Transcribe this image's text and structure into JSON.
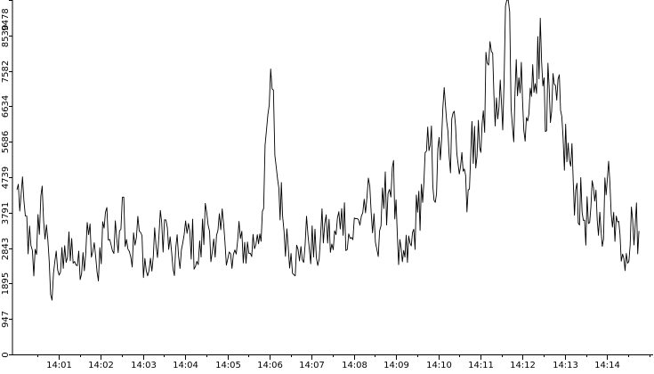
{
  "chart_data": {
    "type": "line",
    "title": "",
    "xlabel": "",
    "ylabel": "",
    "ylim": [
      0,
      9478
    ],
    "y_ticks": [
      0,
      947,
      1895,
      2843,
      3791,
      4739,
      5686,
      6634,
      7582,
      8530,
      9478
    ],
    "x_tick_labels": [
      "14:01",
      "14:02",
      "14:03",
      "14:04",
      "14:05",
      "14:06",
      "14:07",
      "14:08",
      "14:09",
      "14:10",
      "14:11",
      "14:12",
      "14:13",
      "14:14"
    ],
    "x_range_minutes": [
      0.2,
      15.0
    ],
    "grid": false,
    "legend": "none",
    "line_color": "#000000",
    "series": [
      {
        "points": [
          [
            0.2,
            4400
          ],
          [
            0.4,
            3700
          ],
          [
            0.6,
            2100
          ],
          [
            0.8,
            4500
          ],
          [
            1.0,
            1600
          ],
          [
            1.1,
            2500
          ],
          [
            1.3,
            2300
          ],
          [
            1.5,
            3100
          ],
          [
            1.7,
            2000
          ],
          [
            1.9,
            3200
          ],
          [
            2.1,
            2200
          ],
          [
            2.3,
            3800
          ],
          [
            2.5,
            2700
          ],
          [
            2.7,
            4200
          ],
          [
            2.9,
            2600
          ],
          [
            3.1,
            3300
          ],
          [
            3.3,
            2100
          ],
          [
            3.5,
            2900
          ],
          [
            3.7,
            3600
          ],
          [
            3.9,
            2300
          ],
          [
            4.1,
            2800
          ],
          [
            4.3,
            3300
          ],
          [
            4.5,
            2400
          ],
          [
            4.7,
            3800
          ],
          [
            4.9,
            2600
          ],
          [
            5.1,
            3500
          ],
          [
            5.3,
            2300
          ],
          [
            5.5,
            3100
          ],
          [
            5.7,
            2700
          ],
          [
            5.9,
            3200
          ],
          [
            6.05,
            3900
          ],
          [
            6.15,
            6400
          ],
          [
            6.25,
            7100
          ],
          [
            6.35,
            5000
          ],
          [
            6.5,
            3700
          ],
          [
            6.7,
            2700
          ],
          [
            6.9,
            2500
          ],
          [
            7.1,
            3200
          ],
          [
            7.3,
            2600
          ],
          [
            7.5,
            3500
          ],
          [
            7.7,
            2800
          ],
          [
            7.9,
            3900
          ],
          [
            8.1,
            3100
          ],
          [
            8.3,
            3600
          ],
          [
            8.5,
            4200
          ],
          [
            8.7,
            3000
          ],
          [
            8.9,
            3900
          ],
          [
            9.1,
            5000
          ],
          [
            9.25,
            2400
          ],
          [
            9.4,
            2600
          ],
          [
            9.55,
            2900
          ],
          [
            9.7,
            3800
          ],
          [
            9.85,
            4600
          ],
          [
            10.0,
            5600
          ],
          [
            10.15,
            4300
          ],
          [
            10.3,
            6600
          ],
          [
            10.45,
            5300
          ],
          [
            10.6,
            6100
          ],
          [
            10.75,
            5400
          ],
          [
            10.9,
            4400
          ],
          [
            11.05,
            6100
          ],
          [
            11.2,
            5400
          ],
          [
            11.35,
            7800
          ],
          [
            11.45,
            8100
          ],
          [
            11.6,
            6300
          ],
          [
            11.75,
            7300
          ],
          [
            11.85,
            9478
          ],
          [
            11.95,
            6100
          ],
          [
            12.1,
            7400
          ],
          [
            12.25,
            5700
          ],
          [
            12.4,
            6900
          ],
          [
            12.55,
            8500
          ],
          [
            12.7,
            7400
          ],
          [
            12.85,
            6200
          ],
          [
            13.0,
            6800
          ],
          [
            13.15,
            5800
          ],
          [
            13.3,
            5200
          ],
          [
            13.45,
            4400
          ],
          [
            13.6,
            3800
          ],
          [
            13.75,
            3500
          ],
          [
            13.9,
            4100
          ],
          [
            14.05,
            3300
          ],
          [
            14.2,
            4700
          ],
          [
            14.35,
            3800
          ],
          [
            14.5,
            3200
          ],
          [
            14.65,
            2700
          ],
          [
            14.8,
            3600
          ],
          [
            14.95,
            3300
          ]
        ]
      }
    ]
  }
}
